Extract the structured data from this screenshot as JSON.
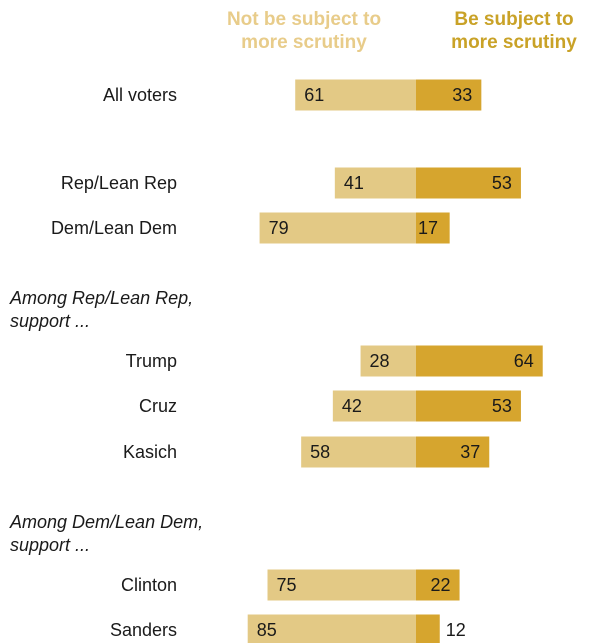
{
  "colors": {
    "not_subject": "#e3c985",
    "subject": "#d6a52e",
    "legend_not_subject": "#e8cc8a",
    "legend_subject": "#c9a227",
    "text": "#1a1a1a"
  },
  "chart_data": {
    "type": "bar",
    "orientation": "horizontal-diverging",
    "legend": [
      "Not be subject to\nmore scrutiny",
      "Be subject to\nmore scrutiny"
    ],
    "section_labels": [
      "Among Rep/Lean Rep,\nsupport ...",
      "Among Dem/Lean Dem,\nsupport ..."
    ],
    "categories": [
      "All voters",
      "Rep/Lean Rep",
      "Dem/Lean Dem",
      "Trump",
      "Cruz",
      "Kasich",
      "Clinton",
      "Sanders"
    ],
    "series": [
      {
        "name": "Not be subject to\nmore scrutiny",
        "values": [
          61,
          41,
          79,
          28,
          42,
          58,
          75,
          85
        ]
      },
      {
        "name": "Be subject to\nmore scrutiny",
        "values": [
          33,
          53,
          17,
          64,
          53,
          37,
          22,
          12
        ]
      }
    ]
  }
}
